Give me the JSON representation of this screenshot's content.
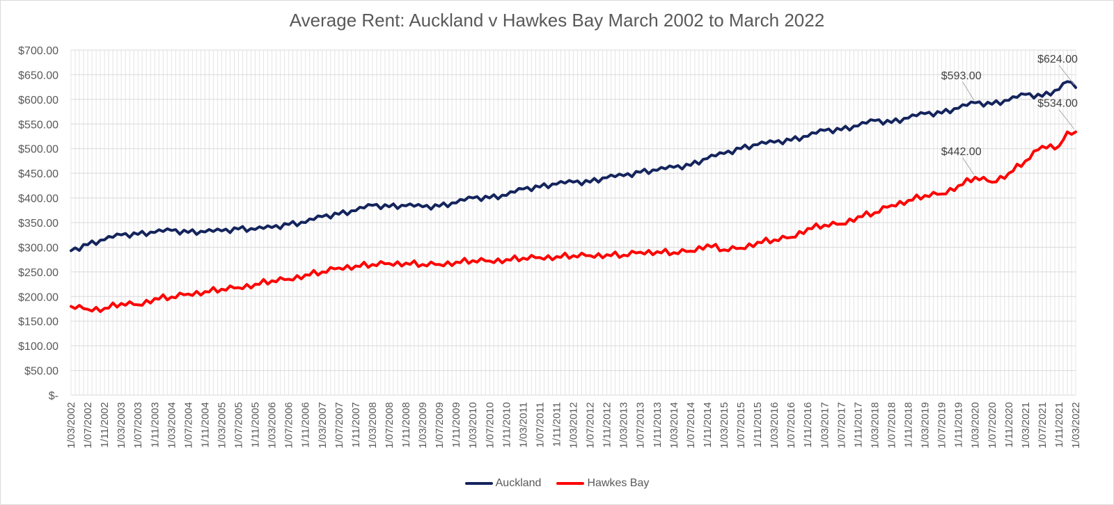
{
  "chart_data": {
    "type": "line",
    "title": "Average Rent: Auckland v Hawkes Bay March 2002 to March 2022",
    "xlabel": "",
    "ylabel": "",
    "ylim": [
      0,
      700
    ],
    "y_ticks": [
      "$700.00",
      "$650.00",
      "$600.00",
      "$550.00",
      "$500.00",
      "$450.00",
      "$400.00",
      "$350.00",
      "$300.00",
      "$250.00",
      "$200.00",
      "$150.00",
      "$100.00",
      "$50.00",
      "$-"
    ],
    "x_ticks": [
      "1/03/2002",
      "1/07/2002",
      "1/11/2002",
      "1/03/2003",
      "1/07/2003",
      "1/11/2003",
      "1/03/2004",
      "1/07/2004",
      "1/11/2004",
      "1/03/2005",
      "1/07/2005",
      "1/11/2005",
      "1/03/2006",
      "1/07/2006",
      "1/11/2006",
      "1/03/2007",
      "1/07/2007",
      "1/11/2007",
      "1/03/2008",
      "1/07/2008",
      "1/11/2008",
      "1/03/2009",
      "1/07/2009",
      "1/11/2009",
      "1/03/2010",
      "1/07/2010",
      "1/11/2010",
      "1/03/2011",
      "1/07/2011",
      "1/11/2011",
      "1/03/2012",
      "1/07/2012",
      "1/11/2012",
      "1/03/2013",
      "1/07/2013",
      "1/11/2013",
      "1/03/2014",
      "1/07/2014",
      "1/11/2014",
      "1/03/2015",
      "1/07/2015",
      "1/11/2015",
      "1/03/2016",
      "1/07/2016",
      "1/11/2016",
      "1/03/2017",
      "1/07/2017",
      "1/11/2017",
      "1/03/2018",
      "1/07/2018",
      "1/11/2018",
      "1/03/2019",
      "1/07/2019",
      "1/11/2019",
      "1/03/2020",
      "1/07/2020",
      "1/11/2020",
      "1/03/2021",
      "1/07/2021",
      "1/11/2021",
      "1/03/2022"
    ],
    "grid": true,
    "legend_position": "bottom",
    "series": [
      {
        "name": "Auckland",
        "color": "#14245c",
        "points": [
          [
            "2002-03",
            293
          ],
          [
            "2002-07",
            305
          ],
          [
            "2002-11",
            315
          ],
          [
            "2003-03",
            325
          ],
          [
            "2003-07",
            326
          ],
          [
            "2003-11",
            330
          ],
          [
            "2004-03",
            334
          ],
          [
            "2004-07",
            330
          ],
          [
            "2004-11",
            331
          ],
          [
            "2005-03",
            333
          ],
          [
            "2005-07",
            337
          ],
          [
            "2005-11",
            336
          ],
          [
            "2006-03",
            340
          ],
          [
            "2006-07",
            346
          ],
          [
            "2006-11",
            350
          ],
          [
            "2007-03",
            362
          ],
          [
            "2007-07",
            367
          ],
          [
            "2007-11",
            374
          ],
          [
            "2008-03",
            385
          ],
          [
            "2008-07",
            382
          ],
          [
            "2008-11",
            384
          ],
          [
            "2009-03",
            382
          ],
          [
            "2009-07",
            383
          ],
          [
            "2009-11",
            390
          ],
          [
            "2010-03",
            400
          ],
          [
            "2010-07",
            400
          ],
          [
            "2010-11",
            405
          ],
          [
            "2011-03",
            418
          ],
          [
            "2011-07",
            422
          ],
          [
            "2011-11",
            428
          ],
          [
            "2012-03",
            432
          ],
          [
            "2012-07",
            432
          ],
          [
            "2012-11",
            441
          ],
          [
            "2013-03",
            445
          ],
          [
            "2013-07",
            452
          ],
          [
            "2013-11",
            456
          ],
          [
            "2014-03",
            462
          ],
          [
            "2014-07",
            466
          ],
          [
            "2014-11",
            480
          ],
          [
            "2015-03",
            490
          ],
          [
            "2015-07",
            500
          ],
          [
            "2015-11",
            508
          ],
          [
            "2016-03",
            513
          ],
          [
            "2016-07",
            517
          ],
          [
            "2016-11",
            525
          ],
          [
            "2017-03",
            537
          ],
          [
            "2017-07",
            538
          ],
          [
            "2017-11",
            546
          ],
          [
            "2018-03",
            557
          ],
          [
            "2018-07",
            553
          ],
          [
            "2018-11",
            562
          ],
          [
            "2019-03",
            571
          ],
          [
            "2019-07",
            572
          ],
          [
            "2019-11",
            582
          ],
          [
            "2020-03",
            593
          ],
          [
            "2020-07",
            590
          ],
          [
            "2020-11",
            598
          ],
          [
            "2021-03",
            610
          ],
          [
            "2021-07",
            606
          ],
          [
            "2021-11",
            620
          ],
          [
            "2022-01",
            636
          ],
          [
            "2022-03",
            624
          ]
        ]
      },
      {
        "name": "Hawkes Bay",
        "color": "#ff0000",
        "points": [
          [
            "2002-03",
            180
          ],
          [
            "2002-07",
            174
          ],
          [
            "2002-11",
            176
          ],
          [
            "2003-03",
            186
          ],
          [
            "2003-07",
            183
          ],
          [
            "2003-11",
            196
          ],
          [
            "2004-03",
            199
          ],
          [
            "2004-07",
            205
          ],
          [
            "2004-11",
            210
          ],
          [
            "2005-03",
            215
          ],
          [
            "2005-07",
            218
          ],
          [
            "2005-11",
            225
          ],
          [
            "2006-03",
            232
          ],
          [
            "2006-07",
            235
          ],
          [
            "2006-11",
            244
          ],
          [
            "2007-03",
            250
          ],
          [
            "2007-07",
            258
          ],
          [
            "2007-11",
            262
          ],
          [
            "2008-03",
            265
          ],
          [
            "2008-07",
            267
          ],
          [
            "2008-11",
            268
          ],
          [
            "2009-03",
            265
          ],
          [
            "2009-07",
            265
          ],
          [
            "2009-11",
            270
          ],
          [
            "2010-03",
            273
          ],
          [
            "2010-07",
            272
          ],
          [
            "2010-11",
            275
          ],
          [
            "2011-03",
            278
          ],
          [
            "2011-07",
            279
          ],
          [
            "2011-11",
            281
          ],
          [
            "2012-03",
            283
          ],
          [
            "2012-07",
            283
          ],
          [
            "2012-11",
            285
          ],
          [
            "2013-03",
            284
          ],
          [
            "2013-07",
            290
          ],
          [
            "2013-11",
            291
          ],
          [
            "2014-03",
            289
          ],
          [
            "2014-07",
            292
          ],
          [
            "2014-11",
            305
          ],
          [
            "2015-03",
            295
          ],
          [
            "2015-07",
            298
          ],
          [
            "2015-11",
            310
          ],
          [
            "2016-03",
            315
          ],
          [
            "2016-07",
            320
          ],
          [
            "2016-11",
            338
          ],
          [
            "2017-03",
            345
          ],
          [
            "2017-07",
            347
          ],
          [
            "2017-11",
            362
          ],
          [
            "2018-03",
            370
          ],
          [
            "2018-07",
            385
          ],
          [
            "2018-11",
            395
          ],
          [
            "2019-03",
            405
          ],
          [
            "2019-07",
            408
          ],
          [
            "2019-11",
            425
          ],
          [
            "2020-03",
            442
          ],
          [
            "2020-07",
            432
          ],
          [
            "2020-11",
            450
          ],
          [
            "2021-03",
            475
          ],
          [
            "2021-07",
            505
          ],
          [
            "2021-11",
            505
          ],
          [
            "2022-01",
            534
          ],
          [
            "2022-03",
            534
          ]
        ]
      }
    ],
    "annotations": [
      {
        "series": "Auckland",
        "date": "2020-03",
        "value": 593,
        "text": "$593.00"
      },
      {
        "series": "Auckland",
        "date": "2022-03",
        "value": 624,
        "text": "$624.00"
      },
      {
        "series": "Hawkes Bay",
        "date": "2020-03",
        "value": 442,
        "text": "$442.00"
      },
      {
        "series": "Hawkes Bay",
        "date": "2022-03",
        "value": 534,
        "text": "$534.00"
      }
    ]
  }
}
